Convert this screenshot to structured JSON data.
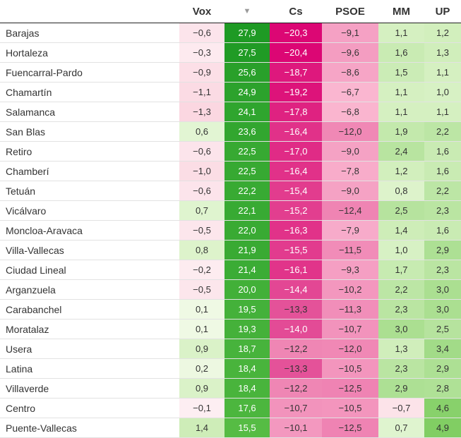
{
  "chart_data": {
    "type": "heatmap",
    "columns": [
      {
        "key": "vox",
        "label": "Vox",
        "sort": ""
      },
      {
        "key": "pp",
        "label": "",
        "sort": "▼"
      },
      {
        "key": "cs",
        "label": "Cs",
        "sort": ""
      },
      {
        "key": "psoe",
        "label": "PSOE",
        "sort": ""
      },
      {
        "key": "mm",
        "label": "MM",
        "sort": ""
      },
      {
        "key": "up",
        "label": "UP",
        "sort": ""
      }
    ],
    "rows": [
      {
        "district": "Barajas",
        "values": [
          "−0,6",
          "27,9",
          "−20,3",
          "−9,1",
          "1,1",
          "1,2"
        ]
      },
      {
        "district": "Hortaleza",
        "values": [
          "−0,3",
          "27,5",
          "−20,4",
          "−9,6",
          "1,6",
          "1,3"
        ]
      },
      {
        "district": "Fuencarral-Pardo",
        "values": [
          "−0,9",
          "25,6",
          "−18,7",
          "−8,6",
          "1,5",
          "1,1"
        ]
      },
      {
        "district": "Chamartín",
        "values": [
          "−1,1",
          "24,9",
          "−19,2",
          "−6,7",
          "1,1",
          "1,0"
        ]
      },
      {
        "district": "Salamanca",
        "values": [
          "−1,3",
          "24,1",
          "−17,8",
          "−6,8",
          "1,1",
          "1,1"
        ]
      },
      {
        "district": "San Blas",
        "values": [
          "0,6",
          "23,6",
          "−16,4",
          "−12,0",
          "1,9",
          "2,2"
        ]
      },
      {
        "district": "Retiro",
        "values": [
          "−0,6",
          "22,5",
          "−17,0",
          "−9,0",
          "2,4",
          "1,6"
        ]
      },
      {
        "district": "Chamberí",
        "values": [
          "−1,0",
          "22,5",
          "−16,4",
          "−7,8",
          "1,2",
          "1,6"
        ]
      },
      {
        "district": "Tetuán",
        "values": [
          "−0,6",
          "22,2",
          "−15,4",
          "−9,0",
          "0,8",
          "2,2"
        ]
      },
      {
        "district": "Vicálvaro",
        "values": [
          "0,7",
          "22,1",
          "−15,2",
          "−12,4",
          "2,5",
          "2,3"
        ]
      },
      {
        "district": "Moncloa-Aravaca",
        "values": [
          "−0,5",
          "22,0",
          "−16,3",
          "−7,9",
          "1,4",
          "1,6"
        ]
      },
      {
        "district": "Villa-Vallecas",
        "values": [
          "0,8",
          "21,9",
          "−15,5",
          "−11,5",
          "1,0",
          "2,9"
        ]
      },
      {
        "district": "Ciudad Lineal",
        "values": [
          "−0,2",
          "21,4",
          "−16,1",
          "−9,3",
          "1,7",
          "2,3"
        ]
      },
      {
        "district": "Arganzuela",
        "values": [
          "−0,5",
          "20,0",
          "−14,4",
          "−10,2",
          "2,2",
          "3,0"
        ]
      },
      {
        "district": "Carabanchel",
        "values": [
          "0,1",
          "19,5",
          "−13,3",
          "−11,3",
          "2,3",
          "3,0"
        ]
      },
      {
        "district": "Moratalaz",
        "values": [
          "0,1",
          "19,3",
          "−14,0",
          "−10,7",
          "3,0",
          "2,5"
        ]
      },
      {
        "district": "Usera",
        "values": [
          "0,9",
          "18,7",
          "−12,2",
          "−12,0",
          "1,3",
          "3,4"
        ]
      },
      {
        "district": "Latina",
        "values": [
          "0,2",
          "18,4",
          "−13,3",
          "−10,5",
          "2,3",
          "2,9"
        ]
      },
      {
        "district": "Villaverde",
        "values": [
          "0,9",
          "18,4",
          "−12,2",
          "−12,5",
          "2,9",
          "2,8"
        ]
      },
      {
        "district": "Centro",
        "values": [
          "−0,1",
          "17,6",
          "−10,7",
          "−10,5",
          "−0,7",
          "4,6"
        ]
      },
      {
        "district": "Puente-Vallecas",
        "values": [
          "1,4",
          "15,5",
          "−10,1",
          "−12,5",
          "0,7",
          "4,9"
        ]
      }
    ]
  }
}
